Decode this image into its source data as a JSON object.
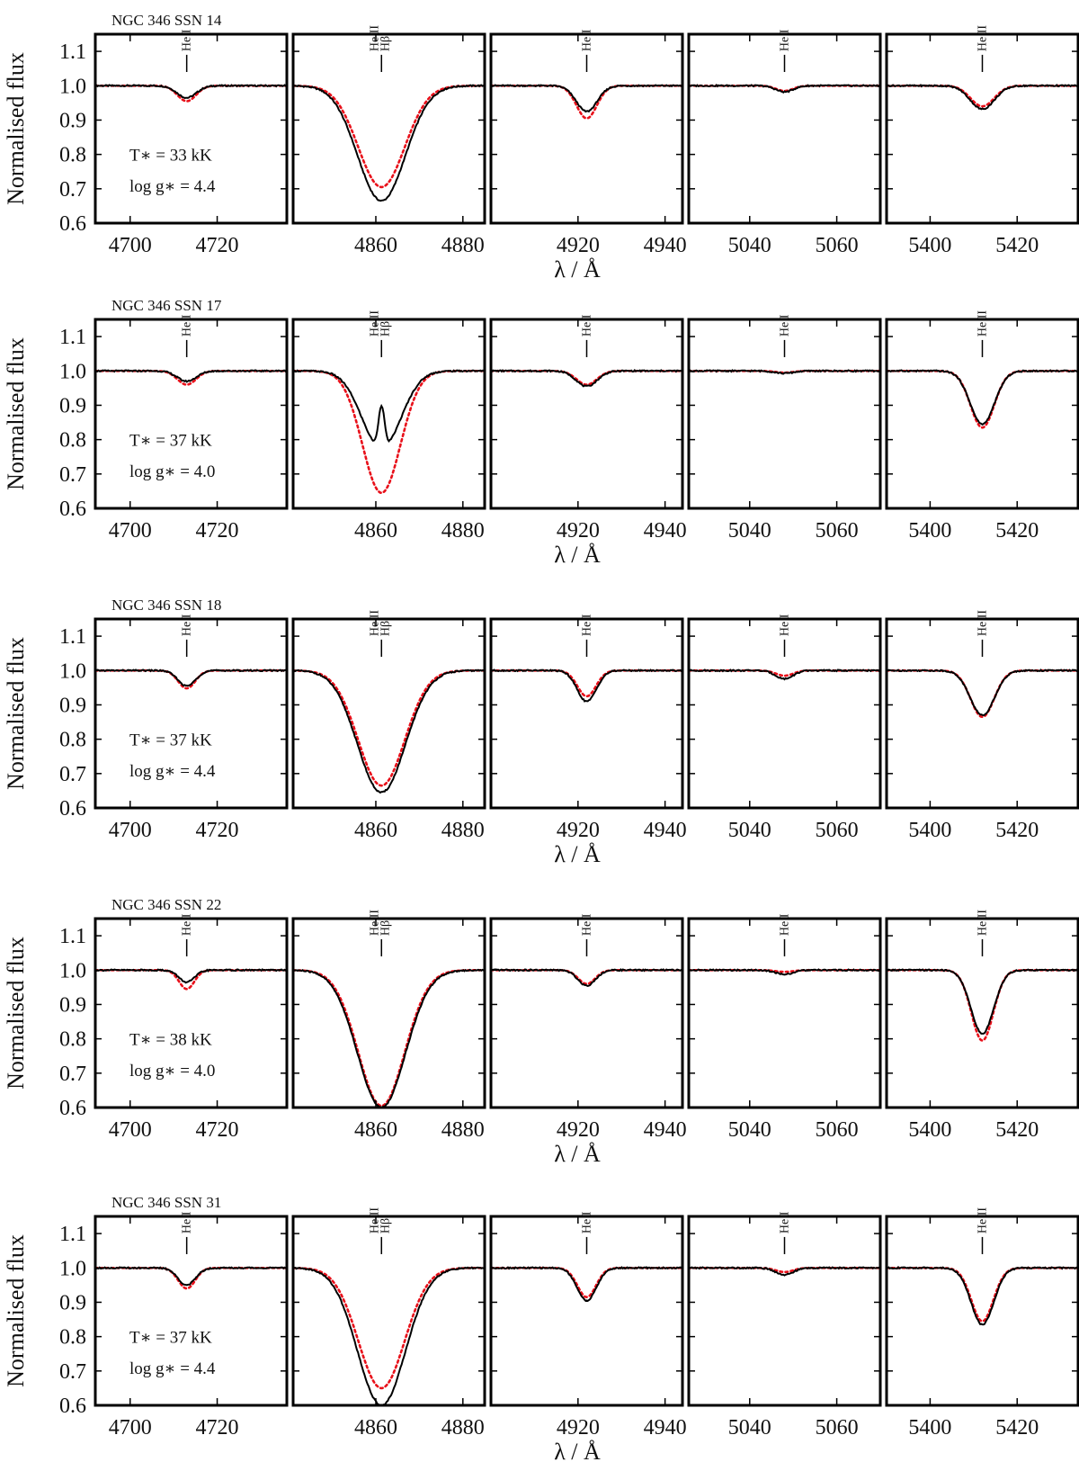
{
  "figure": {
    "ylabel": "Normalised flux",
    "xlabel": "λ / Å",
    "line_colors": {
      "observed": "#000000",
      "model": "#e8101a"
    }
  },
  "chart_data": [
    {
      "type": "line",
      "star": "NGC 346 SSN 14",
      "teff": "33 kK",
      "logg": "4.4",
      "ylim": [
        0.6,
        1.15
      ],
      "yticks": [
        0.6,
        0.7,
        0.8,
        0.9,
        1.0,
        1.1
      ],
      "panels": [
        {
          "xlim": [
            4692,
            4736
          ],
          "xticks": [
            4700,
            4720
          ],
          "line_label": "He I",
          "line_center": 4713,
          "line_depth": {
            "observed": 0.965,
            "model": 0.955
          },
          "line_width": 2.2
        },
        {
          "xlim": [
            4841,
            4885
          ],
          "xticks": [
            4860,
            4880
          ],
          "line_label": "He II\nHβ",
          "line_center": 4861.3,
          "line_depth": {
            "observed": 0.665,
            "model": 0.705
          },
          "line_width": 5.5
        },
        {
          "xlim": [
            4900,
            4944
          ],
          "xticks": [
            4920,
            4940
          ],
          "line_label": "He I",
          "line_center": 4922,
          "line_depth": {
            "observed": 0.925,
            "model": 0.905
          },
          "line_width": 2.4
        },
        {
          "xlim": [
            5026,
            5070
          ],
          "xticks": [
            5040,
            5060
          ],
          "line_label": "He I",
          "line_center": 5048,
          "line_depth": {
            "observed": 0.982,
            "model": 0.985
          },
          "line_width": 2.0
        },
        {
          "xlim": [
            5390,
            5434
          ],
          "xticks": [
            5400,
            5420
          ],
          "line_label": "He II",
          "line_center": 5412,
          "line_depth": {
            "observed": 0.932,
            "model": 0.94
          },
          "line_width": 2.8
        }
      ]
    },
    {
      "type": "line",
      "star": "NGC 346 SSN 17",
      "teff": "37 kK",
      "logg": "4.0",
      "ylim": [
        0.6,
        1.15
      ],
      "yticks": [
        0.6,
        0.7,
        0.8,
        0.9,
        1.0,
        1.1
      ],
      "panels": [
        {
          "xlim": [
            4692,
            4736
          ],
          "xticks": [
            4700,
            4720
          ],
          "line_label": "He I",
          "line_center": 4713,
          "line_depth": {
            "observed": 0.97,
            "model": 0.96
          },
          "line_width": 2.2
        },
        {
          "xlim": [
            4841,
            4885
          ],
          "xticks": [
            4860,
            4880
          ],
          "line_label": "He II\nHβ",
          "line_center": 4861.3,
          "line_depth": {
            "observed": 0.775,
            "model": 0.645
          },
          "line_width": 4.5,
          "emission_peak": 0.9
        },
        {
          "xlim": [
            4900,
            4944
          ],
          "xticks": [
            4920,
            4940
          ],
          "line_label": "He I",
          "line_center": 4922,
          "line_depth": {
            "observed": 0.955,
            "model": 0.96
          },
          "line_width": 2.4
        },
        {
          "xlim": [
            5026,
            5070
          ],
          "xticks": [
            5040,
            5060
          ],
          "line_label": "He I",
          "line_center": 5048,
          "line_depth": {
            "observed": 0.993,
            "model": 0.995
          },
          "line_width": 2.0
        },
        {
          "xlim": [
            5390,
            5434
          ],
          "xticks": [
            5400,
            5420
          ],
          "line_label": "He II",
          "line_center": 5412,
          "line_depth": {
            "observed": 0.845,
            "model": 0.835
          },
          "line_width": 2.8
        }
      ]
    },
    {
      "type": "line",
      "star": "NGC 346 SSN 18",
      "teff": "37 kK",
      "logg": "4.4",
      "ylim": [
        0.6,
        1.15
      ],
      "yticks": [
        0.6,
        0.7,
        0.8,
        0.9,
        1.0,
        1.1
      ],
      "panels": [
        {
          "xlim": [
            4692,
            4736
          ],
          "xticks": [
            4700,
            4720
          ],
          "line_label": "He I",
          "line_center": 4713,
          "line_depth": {
            "observed": 0.955,
            "model": 0.948
          },
          "line_width": 2.0
        },
        {
          "xlim": [
            4841,
            4885
          ],
          "xticks": [
            4860,
            4880
          ],
          "line_label": "He II\nHβ",
          "line_center": 4861.3,
          "line_depth": {
            "observed": 0.645,
            "model": 0.665
          },
          "line_width": 5.5
        },
        {
          "xlim": [
            4900,
            4944
          ],
          "xticks": [
            4920,
            4940
          ],
          "line_label": "He I",
          "line_center": 4922,
          "line_depth": {
            "observed": 0.91,
            "model": 0.925
          },
          "line_width": 2.2
        },
        {
          "xlim": [
            5026,
            5070
          ],
          "xticks": [
            5040,
            5060
          ],
          "line_label": "He I",
          "line_center": 5048,
          "line_depth": {
            "observed": 0.976,
            "model": 0.985
          },
          "line_width": 2.0
        },
        {
          "xlim": [
            5390,
            5434
          ],
          "xticks": [
            5400,
            5420
          ],
          "line_label": "He II",
          "line_center": 5412,
          "line_depth": {
            "observed": 0.87,
            "model": 0.865
          },
          "line_width": 2.8
        }
      ]
    },
    {
      "type": "line",
      "star": "NGC 346 SSN 22",
      "teff": "38 kK",
      "logg": "4.0",
      "ylim": [
        0.6,
        1.15
      ],
      "yticks": [
        0.6,
        0.7,
        0.8,
        0.9,
        1.0,
        1.1
      ],
      "panels": [
        {
          "xlim": [
            4692,
            4736
          ],
          "xticks": [
            4700,
            4720
          ],
          "line_label": "He I",
          "line_center": 4713,
          "line_depth": {
            "observed": 0.965,
            "model": 0.945
          },
          "line_width": 1.8
        },
        {
          "xlim": [
            4841,
            4885
          ],
          "xticks": [
            4860,
            4880
          ],
          "line_label": "He II\nHβ",
          "line_center": 4861.3,
          "line_depth": {
            "observed": 0.6,
            "model": 0.605
          },
          "line_width": 5.5
        },
        {
          "xlim": [
            4900,
            4944
          ],
          "xticks": [
            4920,
            4940
          ],
          "line_label": "He I",
          "line_center": 4922,
          "line_depth": {
            "observed": 0.955,
            "model": 0.96
          },
          "line_width": 2.0
        },
        {
          "xlim": [
            5026,
            5070
          ],
          "xticks": [
            5040,
            5060
          ],
          "line_label": "He I",
          "line_center": 5048,
          "line_depth": {
            "observed": 0.988,
            "model": 0.995
          },
          "line_width": 2.0
        },
        {
          "xlim": [
            5390,
            5434
          ],
          "xticks": [
            5400,
            5420
          ],
          "line_label": "He II",
          "line_center": 5412,
          "line_depth": {
            "observed": 0.815,
            "model": 0.795
          },
          "line_width": 2.6
        }
      ]
    },
    {
      "type": "line",
      "star": "NGC 346 SSN 31",
      "teff": "37 kK",
      "logg": "4.4",
      "ylim": [
        0.6,
        1.15
      ],
      "yticks": [
        0.6,
        0.7,
        0.8,
        0.9,
        1.0,
        1.1
      ],
      "panels": [
        {
          "xlim": [
            4692,
            4736
          ],
          "xticks": [
            4700,
            4720
          ],
          "line_label": "He I",
          "line_center": 4713,
          "line_depth": {
            "observed": 0.95,
            "model": 0.94
          },
          "line_width": 2.0
        },
        {
          "xlim": [
            4841,
            4885
          ],
          "xticks": [
            4860,
            4880
          ],
          "line_label": "He II\nHβ",
          "line_center": 4861.3,
          "line_depth": {
            "observed": 0.6,
            "model": 0.65
          },
          "line_width": 5.5
        },
        {
          "xlim": [
            4900,
            4944
          ],
          "xticks": [
            4920,
            4940
          ],
          "line_label": "He I",
          "line_center": 4922,
          "line_depth": {
            "observed": 0.905,
            "model": 0.915
          },
          "line_width": 2.2
        },
        {
          "xlim": [
            5026,
            5070
          ],
          "xticks": [
            5040,
            5060
          ],
          "line_label": "He I",
          "line_center": 5048,
          "line_depth": {
            "observed": 0.98,
            "model": 0.988
          },
          "line_width": 2.0
        },
        {
          "xlim": [
            5390,
            5434
          ],
          "xticks": [
            5400,
            5420
          ],
          "line_label": "He II",
          "line_center": 5412,
          "line_depth": {
            "observed": 0.835,
            "model": 0.845
          },
          "line_width": 2.6
        }
      ]
    }
  ]
}
